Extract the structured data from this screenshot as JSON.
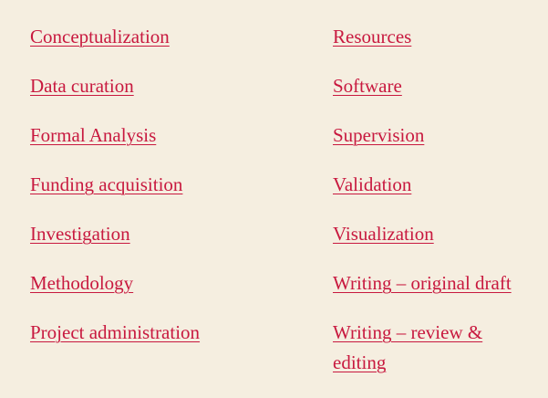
{
  "roles": {
    "left": [
      "Conceptualization",
      "Data curation",
      "Formal Analysis",
      "Funding acquisition",
      "Investigation",
      "Methodology",
      "Project administration"
    ],
    "right": [
      "Resources",
      "Software",
      "Supervision",
      "Validation",
      "Visualization",
      "Writing – original draft",
      "Writing – review & editing"
    ]
  },
  "colors": {
    "background": "#f5eee0",
    "link": "#c8193f"
  }
}
